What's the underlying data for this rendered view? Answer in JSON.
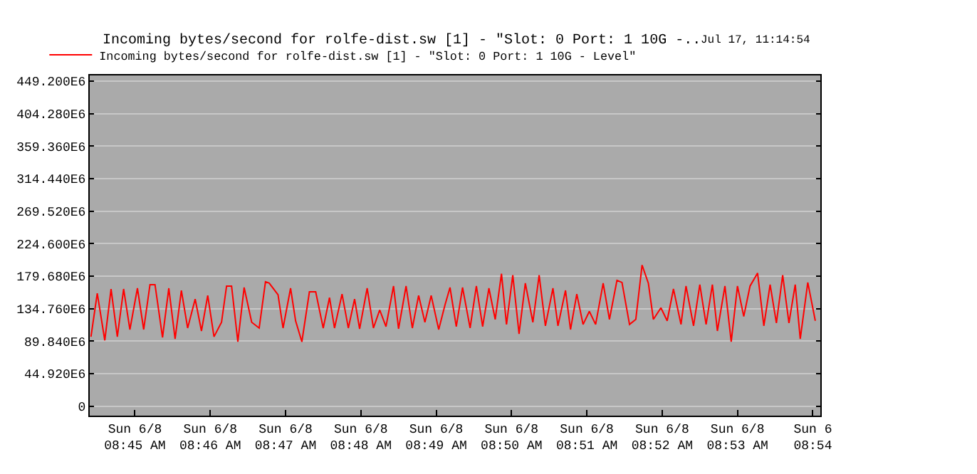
{
  "chart_data": {
    "type": "line",
    "title": "Incoming bytes/second for rolfe-dist.sw [1] - \"Slot: 0 Port: 1 10G -..",
    "subtitle": "Jul 17, 11:14:54",
    "x": [
      "--06-08T08:44:25",
      "--06-08T08:44:30",
      "--06-08T08:44:36",
      "--06-08T08:44:41",
      "--06-08T08:44:46",
      "--06-08T08:44:51",
      "--06-08T08:44:56",
      "--06-08T08:45:02",
      "--06-08T08:45:07",
      "--06-08T08:45:12",
      "--06-08T08:45:16",
      "--06-08T08:45:22",
      "--06-08T08:45:27",
      "--06-08T08:45:32",
      "--06-08T08:45:37",
      "--06-08T08:45:42",
      "--06-08T08:45:48",
      "--06-08T08:45:53",
      "--06-08T08:45:58",
      "--06-08T08:46:03",
      "--06-08T08:46:09",
      "--06-08T08:46:13",
      "--06-08T08:46:17",
      "--06-08T08:46:22",
      "--06-08T08:46:27",
      "--06-08T08:46:33",
      "--06-08T08:46:39",
      "--06-08T08:46:44",
      "--06-08T08:46:47",
      "--06-08T08:46:54",
      "--06-08T08:46:58",
      "--06-08T08:47:04",
      "--06-08T08:47:08",
      "--06-08T08:47:13",
      "--06-08T08:47:19",
      "--06-08T08:47:24",
      "--06-08T08:47:30",
      "--06-08T08:47:35",
      "--06-08T08:47:39",
      "--06-08T08:47:45",
      "--06-08T08:47:50",
      "--06-08T08:47:55",
      "--06-08T08:47:59",
      "--06-08T08:48:05",
      "--06-08T08:48:10",
      "--06-08T08:48:15",
      "--06-08T08:48:20",
      "--06-08T08:48:26",
      "--06-08T08:48:30",
      "--06-08T08:48:36",
      "--06-08T08:48:41",
      "--06-08T08:48:46",
      "--06-08T08:48:51",
      "--06-08T08:48:56",
      "--06-08T08:49:02",
      "--06-08T08:49:07",
      "--06-08T08:49:11",
      "--06-08T08:49:16",
      "--06-08T08:49:21",
      "--06-08T08:49:27",
      "--06-08T08:49:32",
      "--06-08T08:49:37",
      "--06-08T08:49:42",
      "--06-08T08:49:47",
      "--06-08T08:49:52",
      "--06-08T08:49:56",
      "--06-08T08:50:01",
      "--06-08T08:50:06",
      "--06-08T08:50:11",
      "--06-08T08:50:17",
      "--06-08T08:50:22",
      "--06-08T08:50:27",
      "--06-08T08:50:33",
      "--06-08T08:50:37",
      "--06-08T08:50:43",
      "--06-08T08:50:47",
      "--06-08T08:50:52",
      "--06-08T08:50:57",
      "--06-08T08:51:02",
      "--06-08T08:51:07",
      "--06-08T08:51:13",
      "--06-08T08:51:18",
      "--06-08T08:51:24",
      "--06-08T08:51:28",
      "--06-08T08:51:34",
      "--06-08T08:51:39",
      "--06-08T08:51:44",
      "--06-08T08:51:49",
      "--06-08T08:51:53",
      "--06-08T08:51:59",
      "--06-08T08:52:04",
      "--06-08T08:52:09",
      "--06-08T08:52:15",
      "--06-08T08:52:19",
      "--06-08T08:52:25",
      "--06-08T08:52:30",
      "--06-08T08:52:35",
      "--06-08T08:52:40",
      "--06-08T08:52:44",
      "--06-08T08:52:50",
      "--06-08T08:52:55",
      "--06-08T08:53:00",
      "--06-08T08:53:05",
      "--06-08T08:53:10",
      "--06-08T08:53:16",
      "--06-08T08:53:21",
      "--06-08T08:53:26",
      "--06-08T08:53:31",
      "--06-08T08:53:36",
      "--06-08T08:53:41",
      "--06-08T08:53:46",
      "--06-08T08:53:50",
      "--06-08T08:53:56",
      "--06-08T08:54:02"
    ],
    "series": [
      {
        "name": "Incoming bytes/second for rolfe-dist.sw [1] - \"Slot: 0 Port: 1 10G - Level\"",
        "color": "#ff0000",
        "values": [
          96000000,
          156000000,
          91000000,
          162000000,
          96000000,
          162000000,
          106000000,
          163000000,
          106000000,
          168000000,
          168000000,
          95000000,
          163000000,
          93000000,
          160000000,
          108000000,
          148000000,
          104000000,
          153000000,
          96000000,
          116000000,
          166000000,
          166000000,
          89000000,
          164000000,
          116000000,
          108000000,
          172000000,
          170000000,
          154000000,
          108000000,
          163000000,
          118000000,
          89000000,
          158000000,
          158000000,
          108000000,
          150000000,
          108000000,
          155000000,
          108000000,
          148000000,
          107000000,
          163000000,
          108000000,
          133000000,
          110000000,
          166000000,
          107000000,
          166000000,
          108000000,
          153000000,
          116000000,
          153000000,
          106000000,
          140000000,
          164000000,
          110000000,
          164000000,
          108000000,
          166000000,
          110000000,
          163000000,
          120000000,
          183000000,
          113000000,
          181000000,
          100000000,
          170000000,
          116000000,
          181000000,
          111000000,
          163000000,
          111000000,
          160000000,
          106000000,
          155000000,
          113000000,
          131000000,
          113000000,
          170000000,
          120000000,
          174000000,
          171000000,
          113000000,
          120000000,
          195000000,
          170000000,
          120000000,
          136000000,
          118000000,
          162000000,
          113000000,
          166000000,
          111000000,
          168000000,
          113000000,
          168000000,
          104000000,
          166000000,
          89000000,
          166000000,
          124000000,
          166000000,
          184000000,
          111000000,
          168000000,
          115000000,
          181000000,
          115000000,
          168000000,
          93000000,
          171000000,
          118000000
        ]
      }
    ],
    "xlim": [
      "--06-08T08:44:24",
      "--06-08T08:54:06"
    ],
    "xticks": [
      {
        "value": "--06-08T08:45",
        "label": "Sun 6/8\n08:45 AM"
      },
      {
        "value": "--06-08T08:46",
        "label": "Sun 6/8\n08:46 AM"
      },
      {
        "value": "--06-08T08:47",
        "label": "Sun 6/8\n08:47 AM"
      },
      {
        "value": "--06-08T08:48",
        "label": "Sun 6/8\n08:48 AM"
      },
      {
        "value": "--06-08T08:49",
        "label": "Sun 6/8\n08:49 AM"
      },
      {
        "value": "--06-08T08:50",
        "label": "Sun 6/8\n08:50 AM"
      },
      {
        "value": "--06-08T08:51",
        "label": "Sun 6/8\n08:51 AM"
      },
      {
        "value": "--06-08T08:52",
        "label": "Sun 6/8\n08:52 AM"
      },
      {
        "value": "--06-08T08:53",
        "label": "Sun 6/8\n08:53 AM"
      },
      {
        "value": "--06-08T08:54",
        "label": "Sun 6\n08:54"
      }
    ],
    "ylim": [
      -13000000,
      457000000
    ],
    "yticks": [
      0,
      {
        "value": 44920000,
        "label": "44.920E6"
      },
      {
        "value": 89840000,
        "label": "89.840E6"
      },
      {
        "value": 134760000,
        "label": "134.760E6"
      },
      {
        "value": 179680000,
        "label": "179.680E6"
      },
      {
        "value": 224600000,
        "label": "224.600E6"
      },
      {
        "value": 269520000,
        "label": "269.520E6"
      },
      {
        "value": 314440000,
        "label": "314.440E6"
      },
      {
        "value": 359360000,
        "label": "359.360E6"
      },
      {
        "value": 404280000,
        "label": "404.280E6"
      },
      {
        "value": 449200000,
        "label": "449.200E6"
      }
    ],
    "grid": "y",
    "legend": "top left",
    "marker": "none",
    "line_style": "solid"
  }
}
